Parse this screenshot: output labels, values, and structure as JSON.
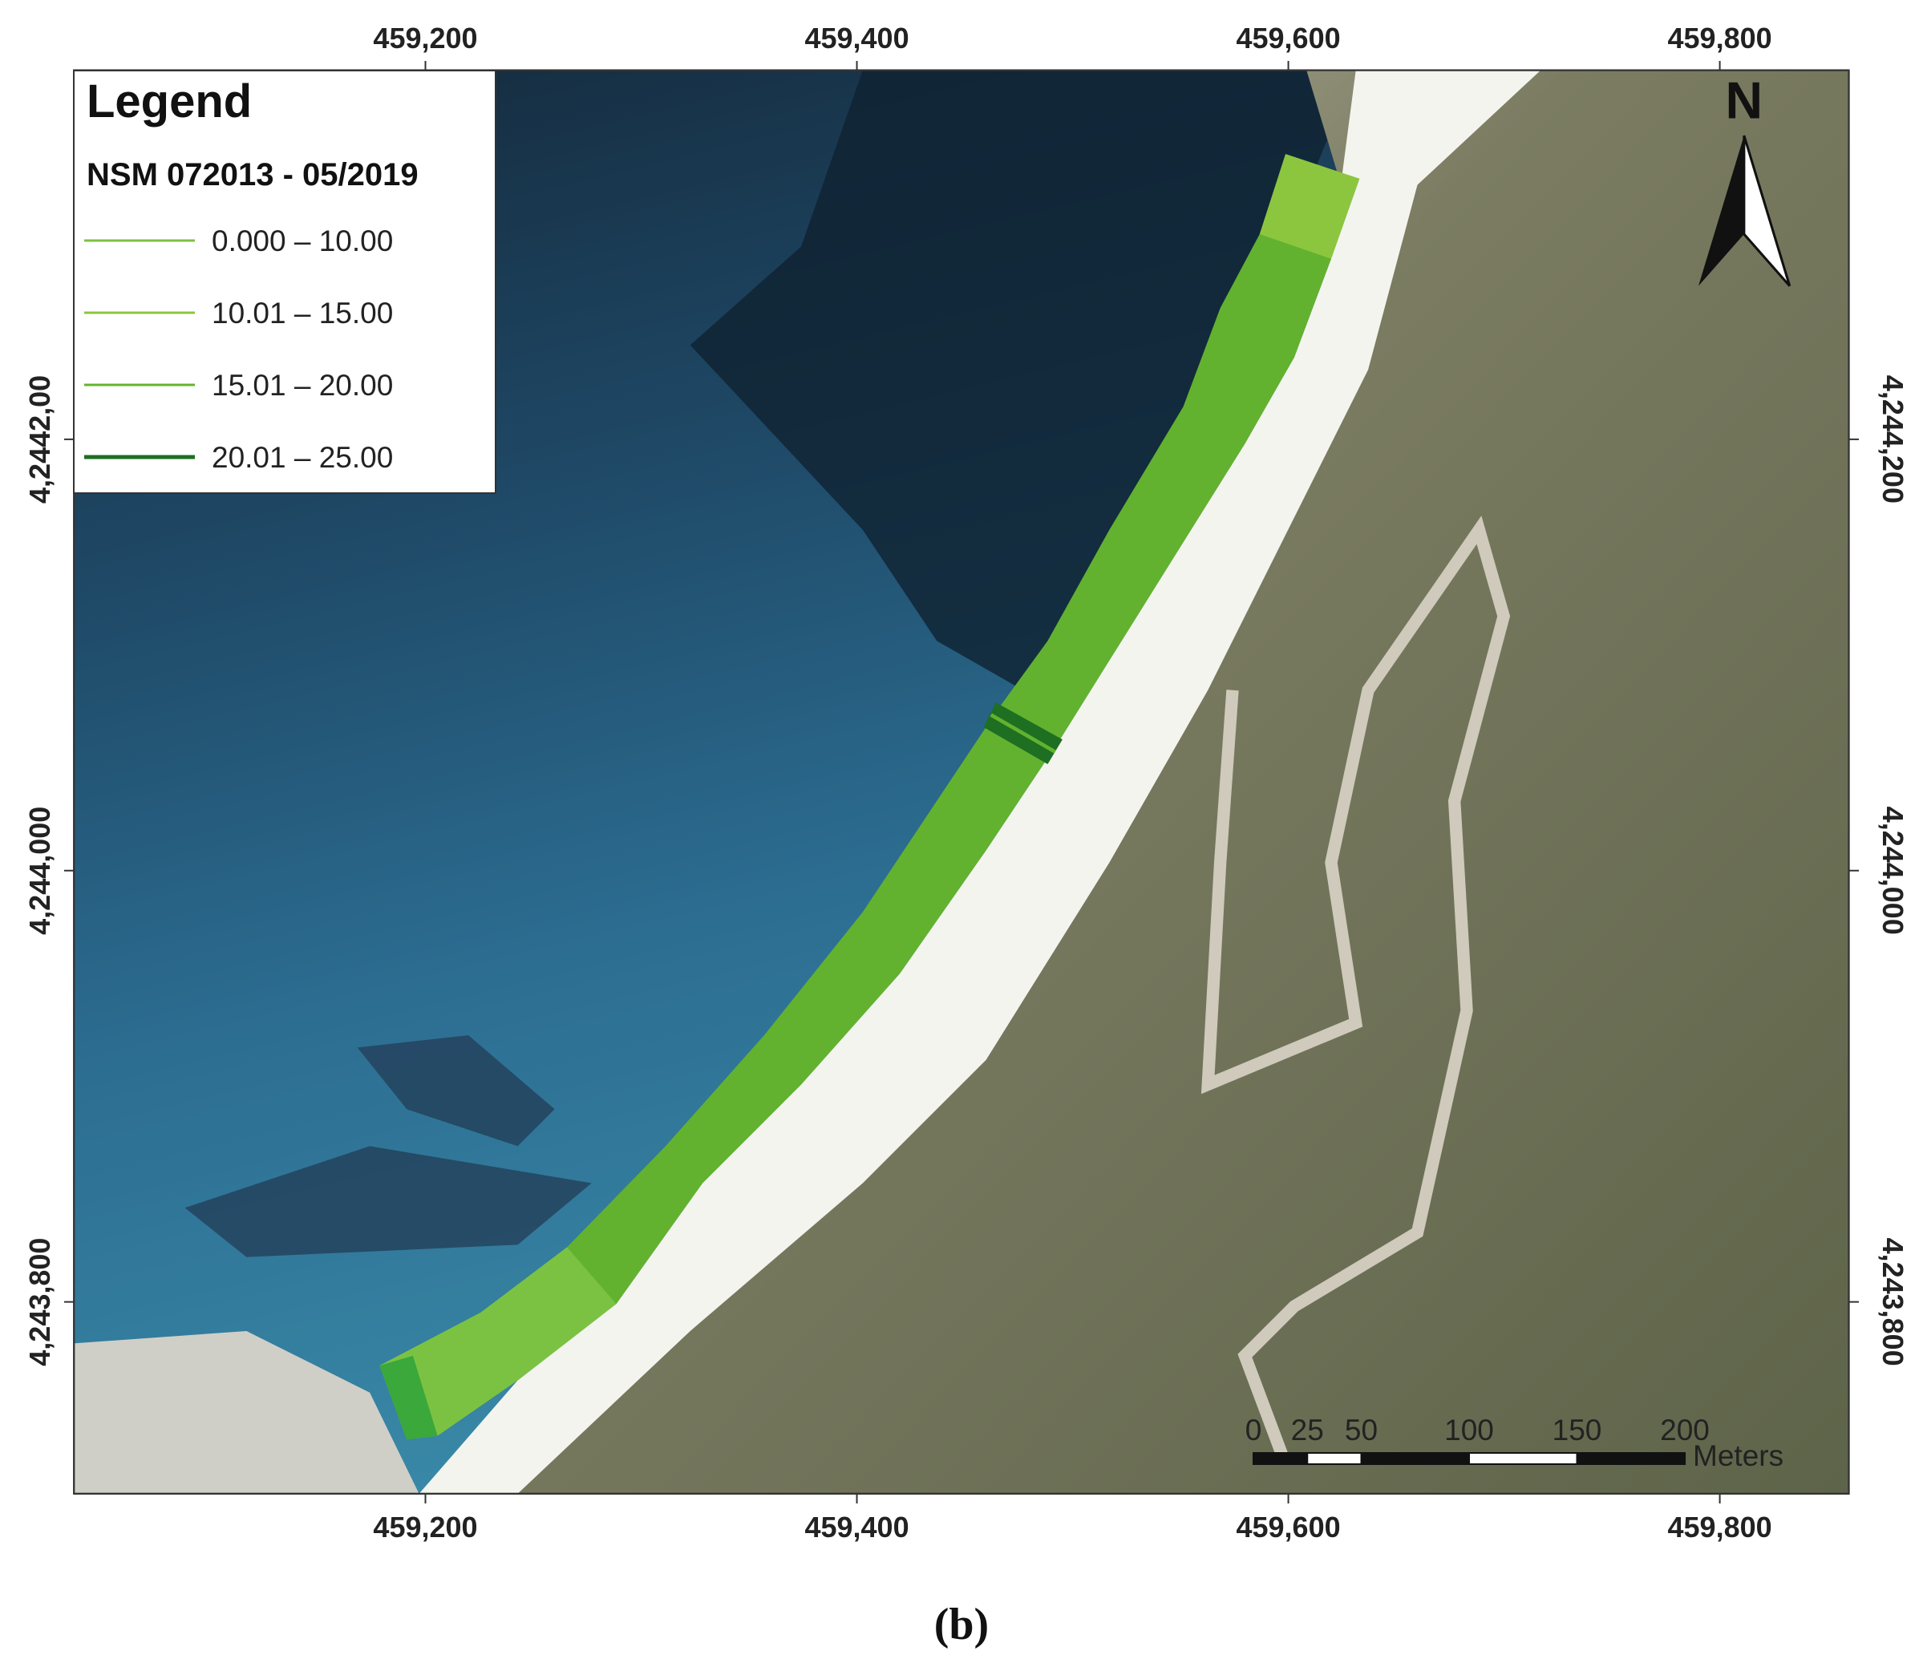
{
  "map": {
    "xlim": [
      459037,
      459860
    ],
    "ylim": [
      4243711,
      4244371
    ],
    "x_ticks_top": [
      {
        "value": 459200,
        "label": "459,200"
      },
      {
        "value": 459400,
        "label": "459,400"
      },
      {
        "value": 459600,
        "label": "459,600"
      },
      {
        "value": 459800,
        "label": "459,800"
      }
    ],
    "x_ticks_bottom": [
      {
        "value": 459200,
        "label": "459,200"
      },
      {
        "value": 459400,
        "label": "459,400"
      },
      {
        "value": 459600,
        "label": "459,600"
      },
      {
        "value": 459800,
        "label": "459,800"
      }
    ],
    "y_ticks_left": [
      {
        "value": 4244200,
        "label": "4,2442,00"
      },
      {
        "value": 4244000,
        "label": "4,244,000"
      },
      {
        "value": 4243800,
        "label": "4,243,800"
      }
    ],
    "y_ticks_right": [
      {
        "value": 4244200,
        "label": "4,244,200"
      },
      {
        "value": 4244000,
        "label": "4,244,000"
      },
      {
        "value": 4243800,
        "label": "4,243,800"
      }
    ]
  },
  "legend": {
    "title": "Legend",
    "subtitle": "NSM 072013 - 05/2019",
    "items": [
      {
        "label": "0.000 – 10.00",
        "color": "#7cc242"
      },
      {
        "label": "10.01 – 15.00",
        "color": "#8cc63f"
      },
      {
        "label": "15.01 – 20.00",
        "color": "#66b32e"
      },
      {
        "label": "20.01 – 25.00",
        "color": "#1e6f22"
      }
    ]
  },
  "scale_bar": {
    "ticks": [
      0,
      25,
      50,
      100,
      150,
      200
    ],
    "unit": "Meters"
  },
  "north_arrow": "N",
  "caption": "(b)"
}
